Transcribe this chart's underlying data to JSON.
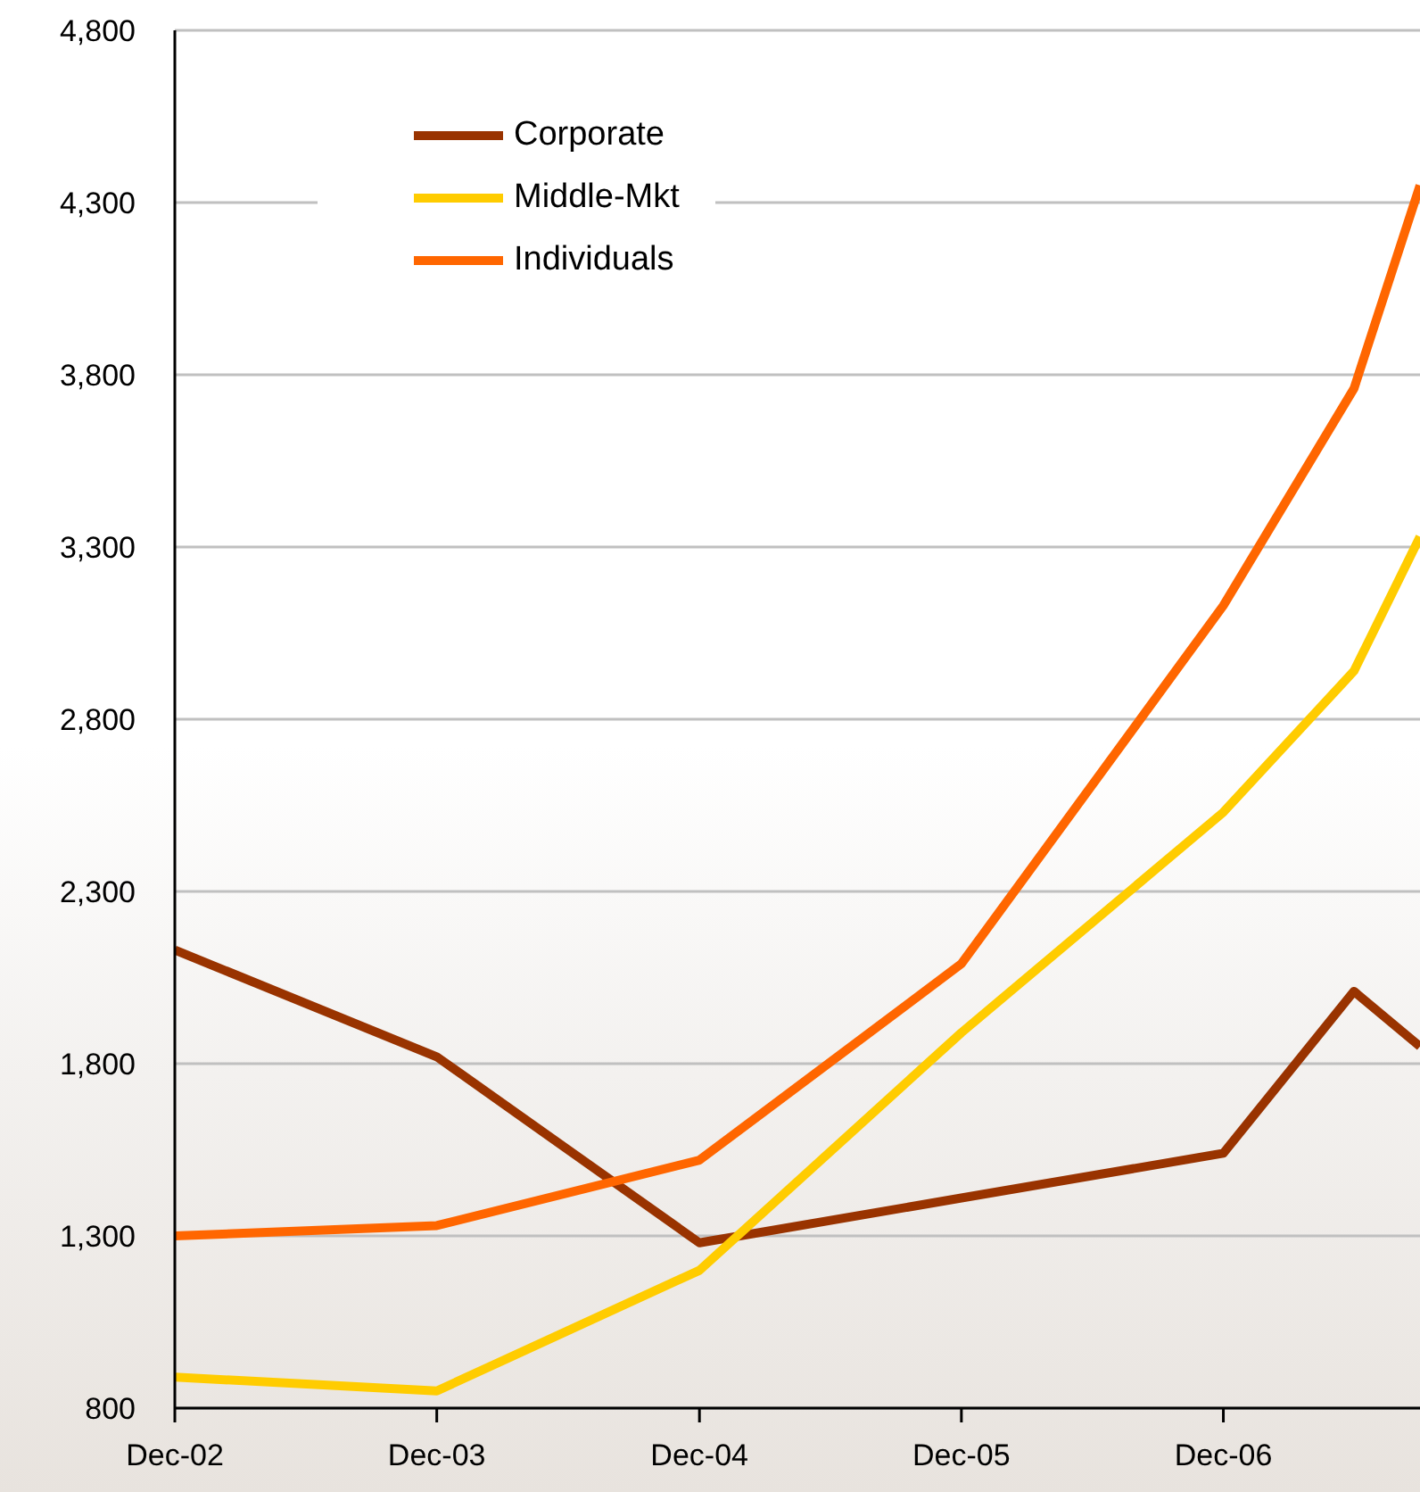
{
  "chart_data": {
    "type": "line",
    "x": [
      "2002-12",
      "2003-12",
      "2004-12",
      "2005-12",
      "2006-12",
      "2007-06",
      "2007-09"
    ],
    "series": [
      {
        "name": "Corporate",
        "color": "#993300",
        "values": [
          2130,
          1820,
          1280,
          1410,
          1540,
          2010,
          1850
        ]
      },
      {
        "name": "Middle-Mkt",
        "color": "#ffcc00",
        "values": [
          890,
          850,
          1200,
          1890,
          2530,
          2940,
          3330
        ]
      },
      {
        "name": "Individuals",
        "color": "#ff6600",
        "values": [
          1300,
          1330,
          1520,
          2090,
          3130,
          3760,
          4350
        ]
      }
    ],
    "xlim": [
      "2002-12",
      "2007-09"
    ],
    "xticks": [
      {
        "value": "2002-12",
        "label": "Dec-02"
      },
      {
        "value": "2003-12",
        "label": "Dec-03"
      },
      {
        "value": "2004-12",
        "label": "Dec-04"
      },
      {
        "value": "2005-12",
        "label": "Dec-05"
      },
      {
        "value": "2006-12",
        "label": "Dec-06"
      }
    ],
    "ylim": [
      800,
      4800
    ],
    "yticks": [
      800,
      {
        "value": 1300,
        "label": "1,300"
      },
      {
        "value": 1800,
        "label": "1,800"
      },
      {
        "value": 2300,
        "label": "2,300"
      },
      {
        "value": 2800,
        "label": "2,800"
      },
      {
        "value": 3300,
        "label": "3,300"
      },
      {
        "value": 3800,
        "label": "3,800"
      },
      {
        "value": 4300,
        "label": "4,300"
      },
      {
        "value": 4800,
        "label": "4,800"
      }
    ],
    "grid": "y",
    "legend": "top left"
  }
}
